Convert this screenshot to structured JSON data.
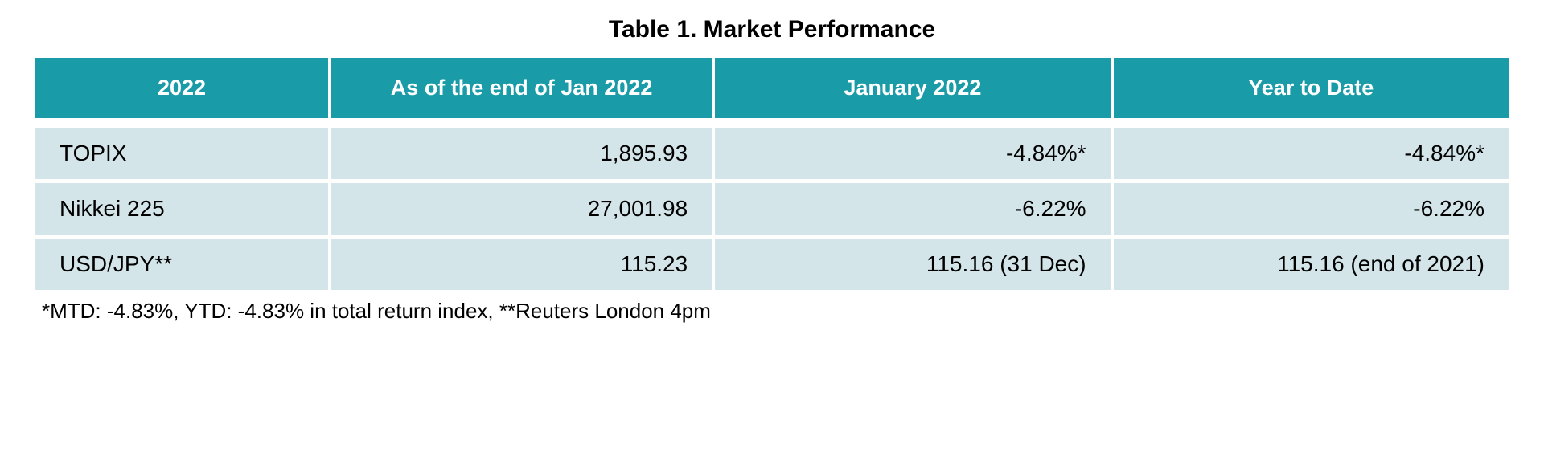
{
  "title": "Table 1. Market Performance",
  "table": {
    "header_bg": "#1a9ca8",
    "header_fg": "#ffffff",
    "cell_bg": "#d4e5ea",
    "cell_fg": "#000000",
    "columns": [
      "2022",
      "As of the end of Jan 2022",
      "January 2022",
      "Year to Date"
    ],
    "rows": [
      {
        "label": "TOPIX",
        "asof": "1,895.93",
        "month": "-4.84%*",
        "ytd": "-4.84%*"
      },
      {
        "label": "Nikkei 225",
        "asof": "27,001.98",
        "month": "-6.22%",
        "ytd": "-6.22%"
      },
      {
        "label": "USD/JPY**",
        "asof": "115.23",
        "month": "115.16 (31 Dec)",
        "ytd": "115.16 (end of 2021)"
      }
    ]
  },
  "footnote": "*MTD: -4.83%, YTD: -4.83% in total return index, **Reuters London 4pm"
}
